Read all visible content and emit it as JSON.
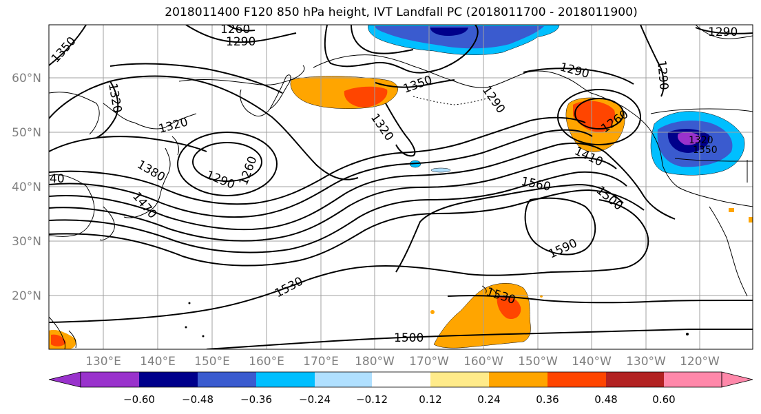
{
  "title": "2018011400 F120 850 hPa height, IVT Landfall PC (2018011700 - 2018011900)",
  "lat_labels": [
    "60°N",
    "50°N",
    "40°N",
    "30°N",
    "20°N"
  ],
  "lon_labels": [
    "130°E",
    "140°E",
    "150°E",
    "160°E",
    "170°E",
    "180°W",
    "170°W",
    "160°W",
    "150°W",
    "140°W",
    "130°W",
    "120°W"
  ],
  "contour_labels": [
    "1260",
    "1290",
    "1350",
    "1320",
    "1290",
    "1320",
    "1290",
    "1260",
    "1350",
    "1320",
    "1380",
    "1470",
    "1290",
    "1260",
    "1410",
    "1560",
    "1500",
    "1590",
    "1530",
    "1530",
    "1500",
    "1290",
    "1290",
    "1320",
    "1350",
    "40"
  ],
  "colorbar": {
    "tick_labels": [
      "−0.60",
      "−0.48",
      "−0.36",
      "−0.24",
      "−0.12",
      "0.12",
      "0.24",
      "0.36",
      "0.48",
      "0.60"
    ],
    "colors": [
      "#9932cc",
      "#00008b",
      "#3a5bcf",
      "#00bfff",
      "#b0e0ff",
      "#ffffff",
      "#ffeb8a",
      "#ffa500",
      "#ff4500",
      "#b22222",
      "#ff88aa"
    ]
  },
  "shading_colors": {
    "orange": "#ffa500",
    "red_orange": "#ff4500",
    "yellow": "#ffeb8a",
    "light_blue": "#00bfff",
    "blue": "#3a5bcf",
    "dark_blue": "#00008b",
    "purple": "#9932cc"
  }
}
